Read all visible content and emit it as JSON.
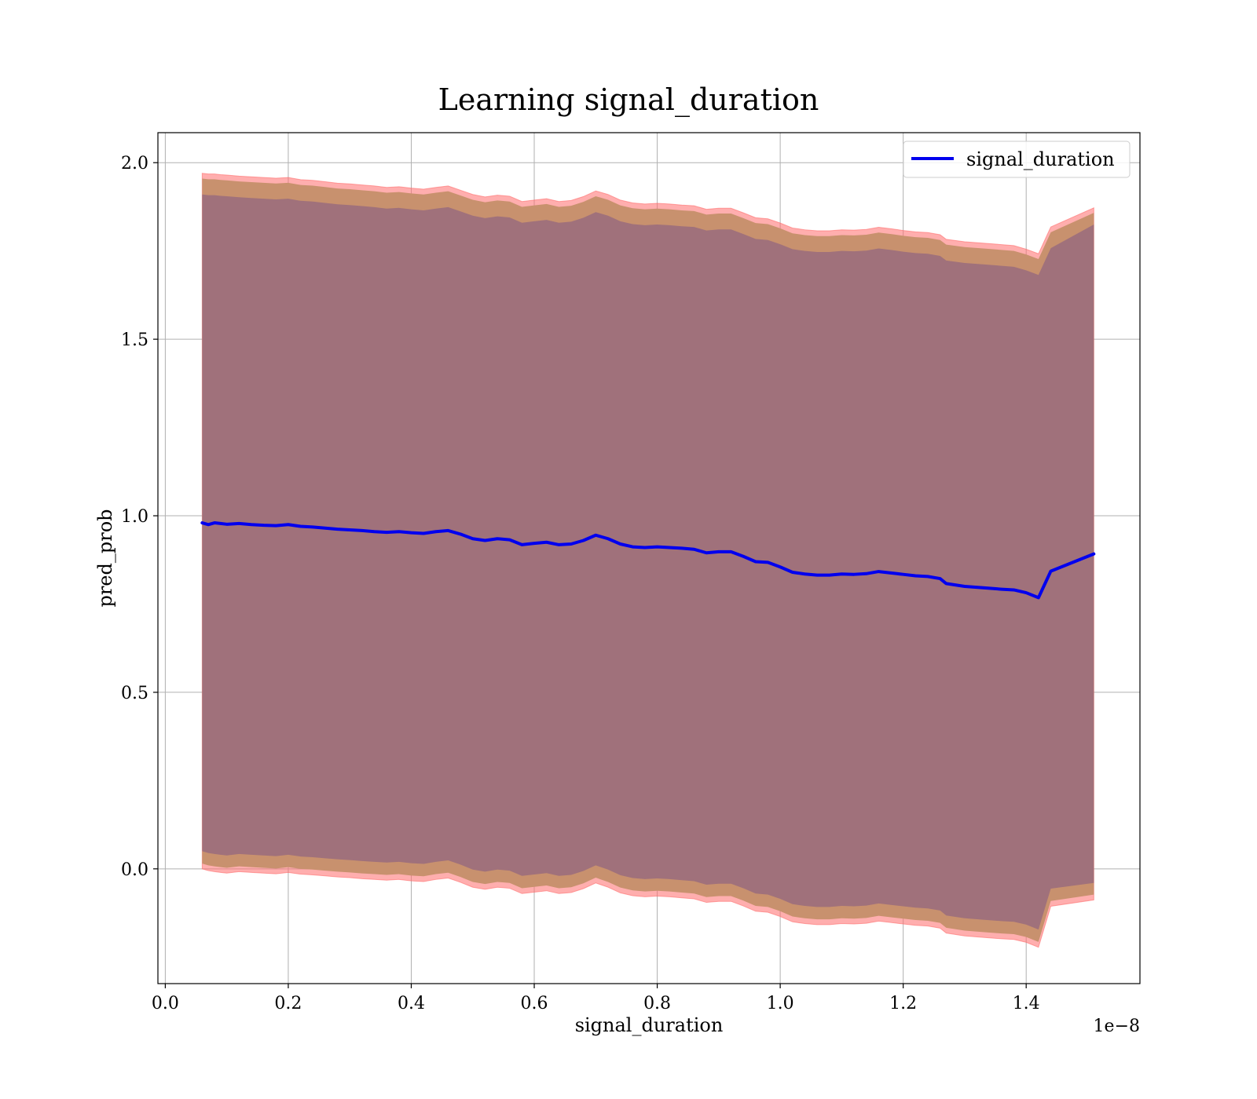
{
  "chart_data": {
    "type": "line",
    "title": "Learning signal_duration",
    "xlabel": "signal_duration",
    "ylabel": "pred_prob",
    "x_offset_label": "1e−8",
    "xlim": [
      -0.012,
      1.585
    ],
    "ylim": [
      -0.325,
      2.085
    ],
    "x_ticks": [
      0.0,
      0.2,
      0.4,
      0.6,
      0.8,
      1.0,
      1.2,
      1.4
    ],
    "x_tick_labels": [
      "0.0",
      "0.2",
      "0.4",
      "0.6",
      "0.8",
      "1.0",
      "1.2",
      "1.4"
    ],
    "y_ticks": [
      0.0,
      0.5,
      1.0,
      1.5,
      2.0
    ],
    "y_tick_labels": [
      "0.0",
      "0.5",
      "1.0",
      "1.5",
      "2.0"
    ],
    "grid": true,
    "legend_position": "top-right",
    "colors": {
      "line": "#0000ee",
      "band_outer": "#ff6b6b",
      "band_middle": "#c8916e",
      "band_inner": "#a0717b"
    },
    "series": [
      {
        "name": "signal_duration",
        "x": [
          0.06,
          0.07,
          0.08,
          0.09,
          0.1,
          0.12,
          0.14,
          0.16,
          0.18,
          0.2,
          0.22,
          0.24,
          0.26,
          0.28,
          0.3,
          0.32,
          0.34,
          0.36,
          0.38,
          0.4,
          0.42,
          0.44,
          0.46,
          0.48,
          0.5,
          0.52,
          0.54,
          0.56,
          0.58,
          0.6,
          0.62,
          0.64,
          0.66,
          0.68,
          0.7,
          0.72,
          0.74,
          0.76,
          0.78,
          0.8,
          0.82,
          0.84,
          0.86,
          0.88,
          0.9,
          0.92,
          0.94,
          0.96,
          0.98,
          1.0,
          1.02,
          1.04,
          1.06,
          1.08,
          1.1,
          1.12,
          1.14,
          1.16,
          1.18,
          1.2,
          1.22,
          1.24,
          1.26,
          1.27,
          1.3,
          1.33,
          1.36,
          1.38,
          1.4,
          1.42,
          1.44,
          1.51
        ],
        "y": [
          0.98,
          0.975,
          0.98,
          0.978,
          0.976,
          0.978,
          0.975,
          0.973,
          0.972,
          0.975,
          0.97,
          0.968,
          0.965,
          0.962,
          0.96,
          0.958,
          0.955,
          0.953,
          0.955,
          0.952,
          0.95,
          0.955,
          0.958,
          0.948,
          0.935,
          0.93,
          0.935,
          0.932,
          0.918,
          0.922,
          0.925,
          0.918,
          0.92,
          0.93,
          0.945,
          0.935,
          0.92,
          0.912,
          0.91,
          0.912,
          0.91,
          0.908,
          0.905,
          0.895,
          0.898,
          0.898,
          0.885,
          0.87,
          0.868,
          0.855,
          0.84,
          0.835,
          0.832,
          0.832,
          0.835,
          0.834,
          0.836,
          0.842,
          0.838,
          0.834,
          0.83,
          0.828,
          0.822,
          0.808,
          0.8,
          0.796,
          0.792,
          0.79,
          0.782,
          0.768,
          0.843,
          0.892
        ],
        "band_outer_upper": [
          1.97,
          1.968,
          1.968,
          1.966,
          1.965,
          1.962,
          1.96,
          1.958,
          1.956,
          1.958,
          1.952,
          1.95,
          1.946,
          1.942,
          1.94,
          1.937,
          1.934,
          1.93,
          1.932,
          1.928,
          1.925,
          1.93,
          1.934,
          1.922,
          1.91,
          1.903,
          1.908,
          1.905,
          1.89,
          1.894,
          1.898,
          1.89,
          1.893,
          1.904,
          1.92,
          1.91,
          1.894,
          1.886,
          1.883,
          1.885,
          1.883,
          1.88,
          1.878,
          1.868,
          1.871,
          1.871,
          1.858,
          1.844,
          1.841,
          1.829,
          1.815,
          1.81,
          1.807,
          1.807,
          1.81,
          1.809,
          1.811,
          1.817,
          1.813,
          1.808,
          1.804,
          1.802,
          1.796,
          1.783,
          1.776,
          1.772,
          1.768,
          1.765,
          1.755,
          1.742,
          1.818,
          1.872
        ],
        "band_outer_lower": [
          0.0,
          -0.005,
          -0.008,
          -0.01,
          -0.012,
          -0.008,
          -0.01,
          -0.012,
          -0.014,
          -0.01,
          -0.015,
          -0.017,
          -0.02,
          -0.023,
          -0.025,
          -0.028,
          -0.03,
          -0.032,
          -0.03,
          -0.034,
          -0.036,
          -0.03,
          -0.026,
          -0.038,
          -0.052,
          -0.058,
          -0.052,
          -0.055,
          -0.07,
          -0.066,
          -0.062,
          -0.07,
          -0.067,
          -0.056,
          -0.04,
          -0.052,
          -0.068,
          -0.076,
          -0.079,
          -0.077,
          -0.079,
          -0.082,
          -0.085,
          -0.095,
          -0.092,
          -0.092,
          -0.105,
          -0.12,
          -0.123,
          -0.135,
          -0.15,
          -0.155,
          -0.158,
          -0.158,
          -0.155,
          -0.156,
          -0.154,
          -0.148,
          -0.152,
          -0.156,
          -0.16,
          -0.162,
          -0.168,
          -0.182,
          -0.19,
          -0.194,
          -0.198,
          -0.2,
          -0.208,
          -0.222,
          -0.106,
          -0.088
        ],
        "band_middle_upper": [
          1.955,
          1.953,
          1.953,
          1.951,
          1.95,
          1.947,
          1.945,
          1.943,
          1.941,
          1.943,
          1.937,
          1.935,
          1.931,
          1.927,
          1.925,
          1.922,
          1.919,
          1.915,
          1.917,
          1.913,
          1.91,
          1.915,
          1.919,
          1.907,
          1.895,
          1.888,
          1.893,
          1.89,
          1.875,
          1.879,
          1.883,
          1.875,
          1.878,
          1.889,
          1.905,
          1.895,
          1.879,
          1.871,
          1.868,
          1.87,
          1.868,
          1.865,
          1.863,
          1.853,
          1.856,
          1.856,
          1.843,
          1.829,
          1.826,
          1.814,
          1.8,
          1.795,
          1.792,
          1.792,
          1.795,
          1.794,
          1.796,
          1.802,
          1.798,
          1.793,
          1.789,
          1.787,
          1.781,
          1.768,
          1.761,
          1.757,
          1.753,
          1.75,
          1.74,
          1.727,
          1.803,
          1.858
        ],
        "band_middle_lower": [
          0.015,
          0.01,
          0.007,
          0.005,
          0.003,
          0.007,
          0.005,
          0.003,
          0.001,
          0.005,
          0.0,
          -0.002,
          -0.005,
          -0.008,
          -0.01,
          -0.013,
          -0.015,
          -0.017,
          -0.015,
          -0.019,
          -0.021,
          -0.015,
          -0.011,
          -0.023,
          -0.037,
          -0.043,
          -0.037,
          -0.04,
          -0.055,
          -0.051,
          -0.047,
          -0.055,
          -0.052,
          -0.041,
          -0.025,
          -0.037,
          -0.053,
          -0.061,
          -0.064,
          -0.062,
          -0.064,
          -0.067,
          -0.07,
          -0.08,
          -0.077,
          -0.077,
          -0.09,
          -0.105,
          -0.108,
          -0.12,
          -0.135,
          -0.14,
          -0.143,
          -0.143,
          -0.14,
          -0.141,
          -0.139,
          -0.133,
          -0.137,
          -0.141,
          -0.145,
          -0.147,
          -0.153,
          -0.167,
          -0.175,
          -0.179,
          -0.183,
          -0.185,
          -0.193,
          -0.207,
          -0.091,
          -0.073
        ],
        "band_inner_upper": [
          1.91,
          1.908,
          1.908,
          1.906,
          1.905,
          1.902,
          1.9,
          1.898,
          1.896,
          1.898,
          1.892,
          1.89,
          1.886,
          1.882,
          1.88,
          1.877,
          1.874,
          1.87,
          1.872,
          1.868,
          1.865,
          1.87,
          1.874,
          1.862,
          1.85,
          1.843,
          1.848,
          1.845,
          1.83,
          1.834,
          1.838,
          1.83,
          1.833,
          1.844,
          1.86,
          1.85,
          1.834,
          1.826,
          1.823,
          1.825,
          1.823,
          1.82,
          1.818,
          1.808,
          1.811,
          1.811,
          1.798,
          1.784,
          1.781,
          1.769,
          1.755,
          1.75,
          1.747,
          1.747,
          1.75,
          1.749,
          1.751,
          1.757,
          1.753,
          1.748,
          1.744,
          1.742,
          1.736,
          1.723,
          1.716,
          1.712,
          1.708,
          1.705,
          1.695,
          1.682,
          1.758,
          1.825
        ],
        "band_inner_lower": [
          0.05,
          0.045,
          0.042,
          0.04,
          0.038,
          0.042,
          0.04,
          0.038,
          0.036,
          0.04,
          0.035,
          0.033,
          0.03,
          0.027,
          0.025,
          0.022,
          0.02,
          0.018,
          0.02,
          0.016,
          0.014,
          0.02,
          0.024,
          0.012,
          -0.002,
          -0.008,
          -0.002,
          -0.005,
          -0.02,
          -0.016,
          -0.012,
          -0.02,
          -0.017,
          -0.006,
          0.01,
          -0.002,
          -0.018,
          -0.026,
          -0.029,
          -0.027,
          -0.029,
          -0.032,
          -0.035,
          -0.045,
          -0.042,
          -0.042,
          -0.055,
          -0.07,
          -0.073,
          -0.085,
          -0.1,
          -0.105,
          -0.108,
          -0.108,
          -0.105,
          -0.106,
          -0.104,
          -0.098,
          -0.102,
          -0.106,
          -0.11,
          -0.112,
          -0.118,
          -0.132,
          -0.14,
          -0.144,
          -0.148,
          -0.15,
          -0.158,
          -0.172,
          -0.056,
          -0.04
        ]
      }
    ]
  }
}
